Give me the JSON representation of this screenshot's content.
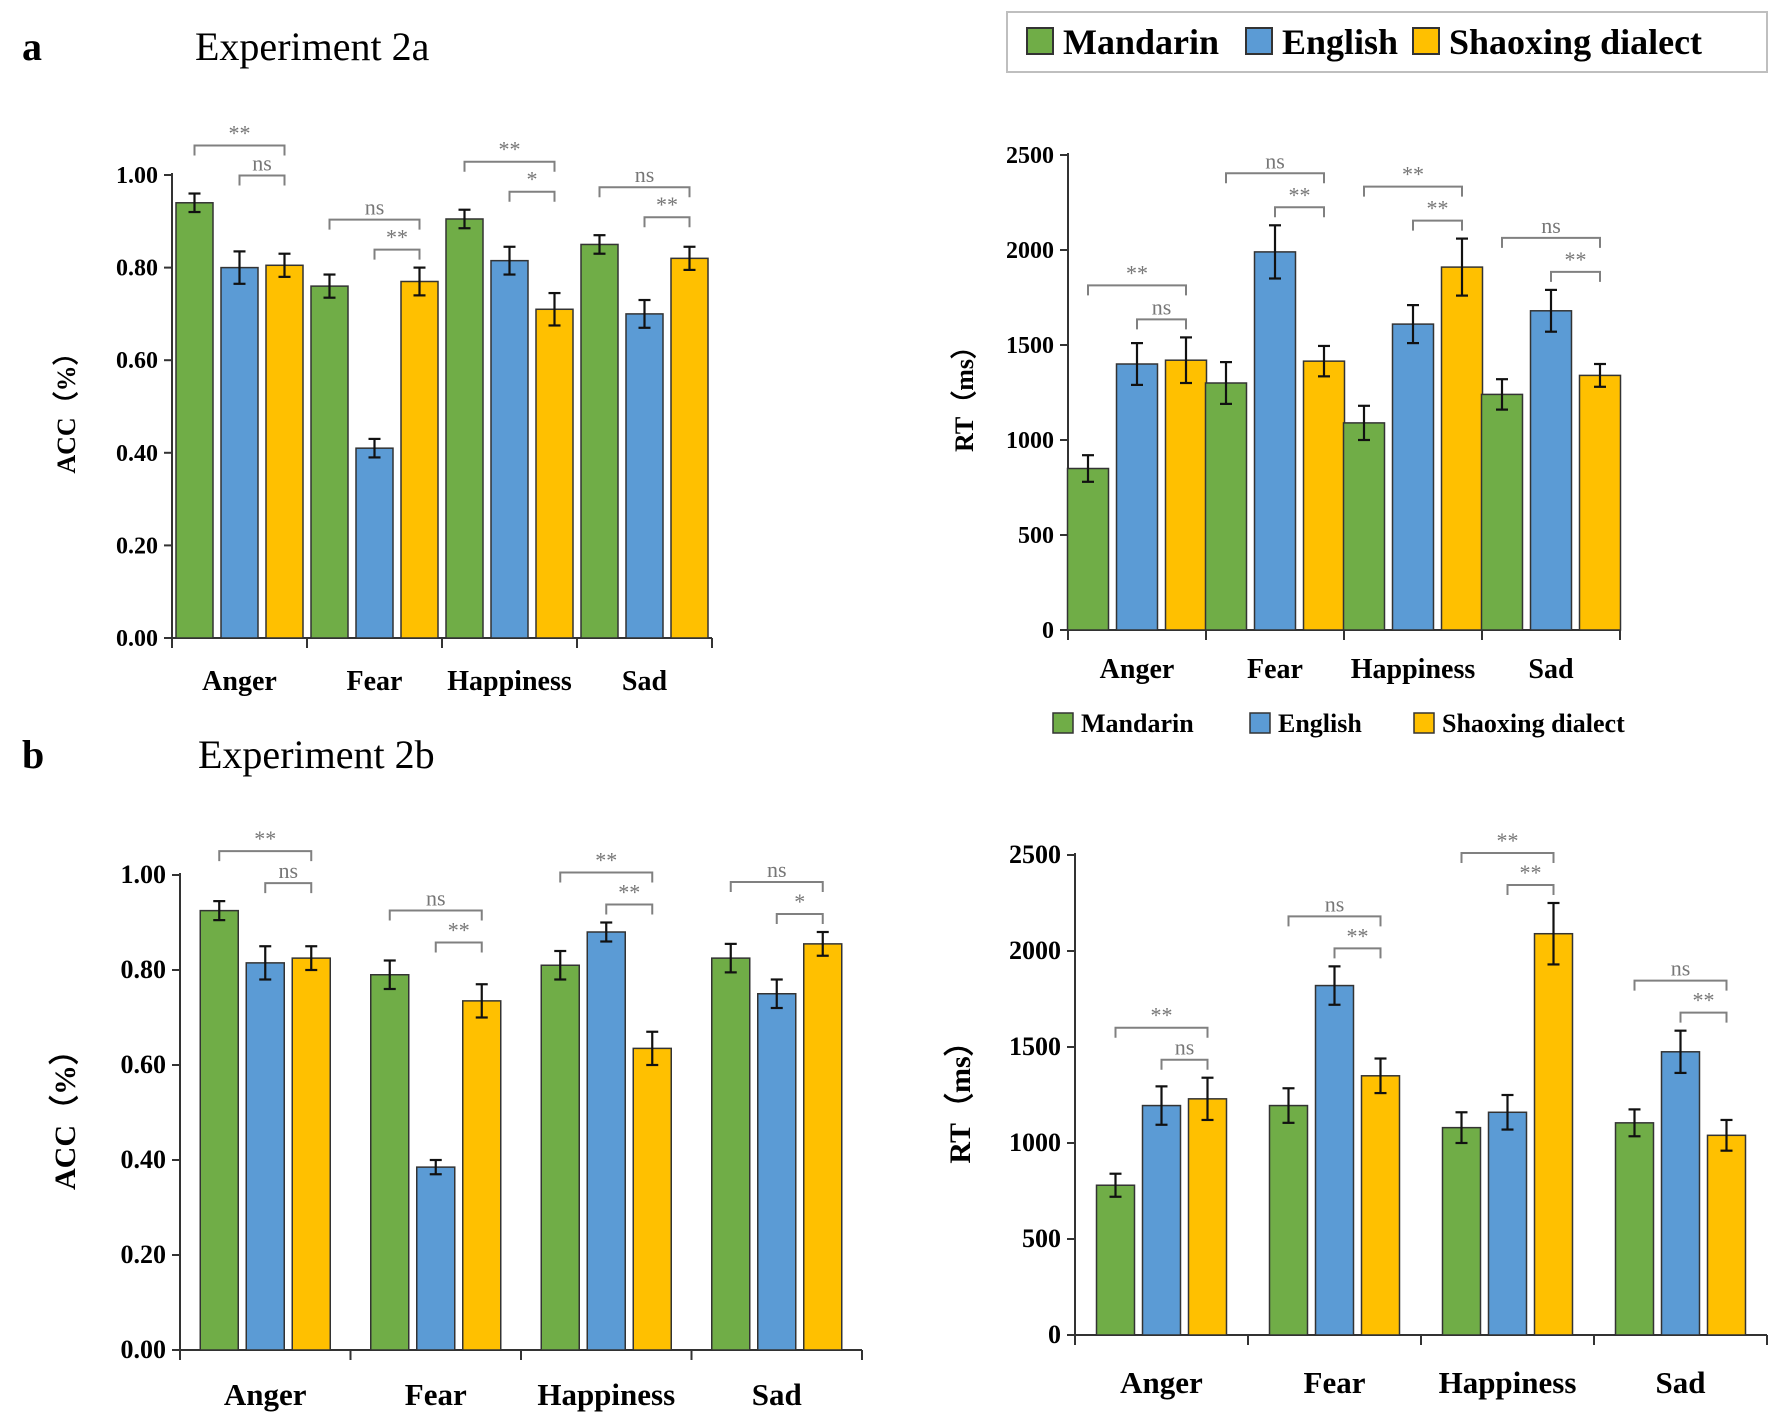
{
  "figure": {
    "panel_a": {
      "letter": "a",
      "title": "Experiment 2a"
    },
    "panel_b": {
      "letter": "b",
      "title": "Experiment 2b"
    }
  },
  "colors": {
    "Mandarin": "#70AD47",
    "English": "#5B9BD5",
    "Shaoxing dialect": "#FFC000",
    "bracket": "#808080"
  },
  "legend": {
    "top": [
      "Mandarin",
      "English",
      "Shaoxing dialect"
    ],
    "middle": [
      "Mandarin",
      "English",
      "Shaoxing dialect"
    ]
  },
  "chart_data": [
    {
      "id": "a_acc",
      "type": "bar",
      "title": "Experiment 2a",
      "ylabel": "ACC（%）",
      "ylim": [
        0,
        1
      ],
      "yticks": [
        0.0,
        0.2,
        0.4,
        0.6,
        0.8,
        1.0
      ],
      "ytick_labels": [
        "0.00",
        "0.20",
        "0.40",
        "0.60",
        "0.80",
        "1.00"
      ],
      "categories": [
        "Anger",
        "Fear",
        "Happiness",
        "Sad"
      ],
      "series": [
        {
          "name": "Mandarin",
          "values": [
            0.94,
            0.76,
            0.905,
            0.85
          ],
          "errors": [
            0.02,
            0.025,
            0.02,
            0.02
          ]
        },
        {
          "name": "English",
          "values": [
            0.8,
            0.41,
            0.815,
            0.7
          ],
          "errors": [
            0.035,
            0.02,
            0.03,
            0.03
          ]
        },
        {
          "name": "Shaoxing dialect",
          "values": [
            0.805,
            0.77,
            0.71,
            0.82
          ],
          "errors": [
            0.025,
            0.03,
            0.035,
            0.025
          ]
        }
      ],
      "comparisons": [
        {
          "cat": 0,
          "from": 0,
          "to": 2,
          "label": "**",
          "level": 2
        },
        {
          "cat": 0,
          "from": 1,
          "to": 2,
          "label": "ns",
          "level": 1
        },
        {
          "cat": 1,
          "from": 0,
          "to": 2,
          "label": "ns",
          "level": 2
        },
        {
          "cat": 1,
          "from": 1,
          "to": 2,
          "label": "**",
          "level": 1
        },
        {
          "cat": 2,
          "from": 0,
          "to": 2,
          "label": "**",
          "level": 2
        },
        {
          "cat": 2,
          "from": 1,
          "to": 2,
          "label": "*",
          "level": 1
        },
        {
          "cat": 3,
          "from": 0,
          "to": 2,
          "label": "ns",
          "level": 2
        },
        {
          "cat": 3,
          "from": 1,
          "to": 2,
          "label": "**",
          "level": 1
        }
      ]
    },
    {
      "id": "a_rt",
      "type": "bar",
      "title": "Experiment 2a",
      "ylabel": "RT（ms）",
      "ylim": [
        0,
        2500
      ],
      "yticks": [
        0,
        500,
        1000,
        1500,
        2000,
        2500
      ],
      "ytick_labels": [
        "0",
        "500",
        "1000",
        "1500",
        "2000",
        "2500"
      ],
      "categories": [
        "Anger",
        "Fear",
        "Happiness",
        "Sad"
      ],
      "series": [
        {
          "name": "Mandarin",
          "values": [
            850,
            1300,
            1090,
            1240
          ],
          "errors": [
            70,
            110,
            90,
            80
          ]
        },
        {
          "name": "English",
          "values": [
            1400,
            1990,
            1610,
            1680
          ],
          "errors": [
            110,
            140,
            100,
            110
          ]
        },
        {
          "name": "Shaoxing dialect",
          "values": [
            1420,
            1415,
            1910,
            1340
          ],
          "errors": [
            120,
            80,
            150,
            60
          ]
        }
      ],
      "comparisons": [
        {
          "cat": 0,
          "from": 0,
          "to": 2,
          "label": "**",
          "level": 2
        },
        {
          "cat": 0,
          "from": 1,
          "to": 2,
          "label": "ns",
          "level": 1
        },
        {
          "cat": 1,
          "from": 0,
          "to": 2,
          "label": "ns",
          "level": 2
        },
        {
          "cat": 1,
          "from": 1,
          "to": 2,
          "label": "**",
          "level": 1
        },
        {
          "cat": 2,
          "from": 0,
          "to": 2,
          "label": "**",
          "level": 2
        },
        {
          "cat": 2,
          "from": 1,
          "to": 2,
          "label": "**",
          "level": 1
        },
        {
          "cat": 3,
          "from": 0,
          "to": 2,
          "label": "ns",
          "level": 2
        },
        {
          "cat": 3,
          "from": 1,
          "to": 2,
          "label": "**",
          "level": 1
        }
      ]
    },
    {
      "id": "b_acc",
      "type": "bar",
      "title": "Experiment 2b",
      "ylabel": "ACC（%）",
      "ylim": [
        0,
        1
      ],
      "yticks": [
        0.0,
        0.2,
        0.4,
        0.6,
        0.8,
        1.0
      ],
      "ytick_labels": [
        "0.00",
        "0.20",
        "0.40",
        "0.60",
        "0.80",
        "1.00"
      ],
      "categories": [
        "Anger",
        "Fear",
        "Happiness",
        "Sad"
      ],
      "series": [
        {
          "name": "Mandarin",
          "values": [
            0.925,
            0.79,
            0.81,
            0.825
          ],
          "errors": [
            0.02,
            0.03,
            0.03,
            0.03
          ]
        },
        {
          "name": "English",
          "values": [
            0.815,
            0.385,
            0.88,
            0.75
          ],
          "errors": [
            0.035,
            0.015,
            0.02,
            0.03
          ]
        },
        {
          "name": "Shaoxing dialect",
          "values": [
            0.825,
            0.735,
            0.635,
            0.855
          ],
          "errors": [
            0.025,
            0.035,
            0.035,
            0.025
          ]
        }
      ],
      "comparisons": [
        {
          "cat": 0,
          "from": 0,
          "to": 2,
          "label": "**",
          "level": 2
        },
        {
          "cat": 0,
          "from": 1,
          "to": 2,
          "label": "ns",
          "level": 1
        },
        {
          "cat": 1,
          "from": 0,
          "to": 2,
          "label": "ns",
          "level": 2
        },
        {
          "cat": 1,
          "from": 1,
          "to": 2,
          "label": "**",
          "level": 1
        },
        {
          "cat": 2,
          "from": 0,
          "to": 2,
          "label": "**",
          "level": 2
        },
        {
          "cat": 2,
          "from": 1,
          "to": 2,
          "label": "**",
          "level": 1
        },
        {
          "cat": 3,
          "from": 0,
          "to": 2,
          "label": "ns",
          "level": 2
        },
        {
          "cat": 3,
          "from": 1,
          "to": 2,
          "label": "*",
          "level": 1
        }
      ]
    },
    {
      "id": "b_rt",
      "type": "bar",
      "title": "Experiment 2b",
      "ylabel": "RT（ms）",
      "ylim": [
        0,
        2500
      ],
      "yticks": [
        0,
        500,
        1000,
        1500,
        2000,
        2500
      ],
      "ytick_labels": [
        "0",
        "500",
        "1000",
        "1500",
        "2000",
        "2500"
      ],
      "categories": [
        "Anger",
        "Fear",
        "Happiness",
        "Sad"
      ],
      "series": [
        {
          "name": "Mandarin",
          "values": [
            780,
            1195,
            1080,
            1105
          ],
          "errors": [
            60,
            90,
            80,
            70
          ]
        },
        {
          "name": "English",
          "values": [
            1195,
            1820,
            1160,
            1475
          ],
          "errors": [
            100,
            100,
            90,
            110
          ]
        },
        {
          "name": "Shaoxing dialect",
          "values": [
            1230,
            1350,
            2090,
            1040
          ],
          "errors": [
            110,
            90,
            160,
            80
          ]
        }
      ],
      "comparisons": [
        {
          "cat": 0,
          "from": 0,
          "to": 2,
          "label": "**",
          "level": 2
        },
        {
          "cat": 0,
          "from": 1,
          "to": 2,
          "label": "ns",
          "level": 1
        },
        {
          "cat": 1,
          "from": 0,
          "to": 2,
          "label": "ns",
          "level": 2
        },
        {
          "cat": 1,
          "from": 1,
          "to": 2,
          "label": "**",
          "level": 1
        },
        {
          "cat": 2,
          "from": 0,
          "to": 2,
          "label": "**",
          "level": 2
        },
        {
          "cat": 2,
          "from": 1,
          "to": 2,
          "label": "**",
          "level": 1
        },
        {
          "cat": 3,
          "from": 0,
          "to": 2,
          "label": "ns",
          "level": 2
        },
        {
          "cat": 3,
          "from": 1,
          "to": 2,
          "label": "**",
          "level": 1
        }
      ]
    }
  ]
}
